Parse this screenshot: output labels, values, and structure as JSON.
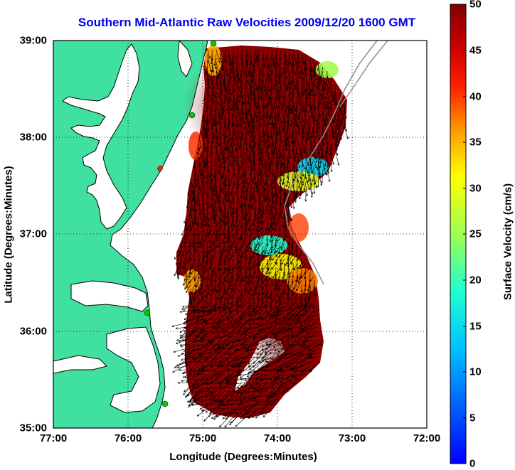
{
  "title": "Southern Mid-Atlantic Raw Velocities 2009/12/20 1600 GMT",
  "x_axis": {
    "label": "Longitude (Degrees:Minutes)",
    "ticks": [
      "77:00",
      "76:00",
      "75:00",
      "74:00",
      "73:00",
      "72:00"
    ]
  },
  "y_axis": {
    "label": "Latitude (Degrees:Minutes)",
    "ticks": [
      "39:00",
      "38:00",
      "37:00",
      "36:00",
      "35:00"
    ]
  },
  "colorbar": {
    "label": "Surface Velocity (cm/s)",
    "ticks": [
      "50",
      "45",
      "40",
      "35",
      "30",
      "25",
      "20",
      "15",
      "10",
      "5",
      "0"
    ],
    "min": 0,
    "max": 50
  },
  "map_extent": {
    "lon": [
      -77,
      -72
    ],
    "lat": [
      35,
      39
    ]
  },
  "colors": {
    "land": "#40e0a0",
    "water": "#ffffff",
    "title": "#0000ee",
    "station_markers": "#00cc00",
    "station_marker_alert": "#ff2000"
  },
  "icons": {
    "station": "circle-marker-icon",
    "velocity": "arrow-vector-icon"
  }
}
